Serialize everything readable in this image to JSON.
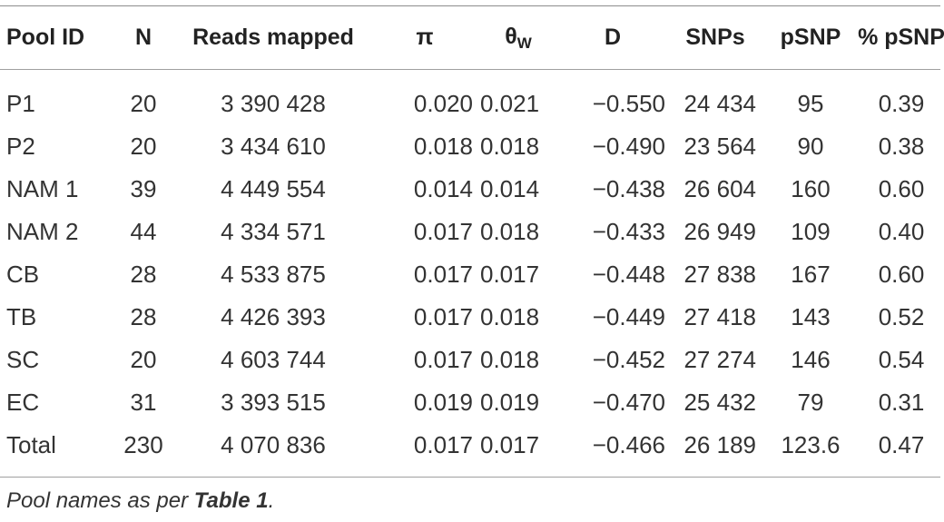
{
  "table": {
    "headers": {
      "pool_id": "Pool ID",
      "n": "N",
      "reads": "Reads mapped",
      "pi": "π",
      "theta": "θ",
      "theta_sub": "W",
      "d": "D",
      "snps": "SNPs",
      "psnp": "pSNP",
      "pct_psnp": "% pSNP"
    },
    "rows": [
      {
        "pool_id": "P1",
        "n": "20",
        "reads": "3 390 428",
        "pi": "0.020",
        "theta": "0.021",
        "d": "−0.550",
        "snps": "24 434",
        "psnp": "95",
        "pct_psnp": "0.39"
      },
      {
        "pool_id": "P2",
        "n": "20",
        "reads": "3 434 610",
        "pi": "0.018",
        "theta": "0.018",
        "d": "−0.490",
        "snps": "23 564",
        "psnp": "90",
        "pct_psnp": "0.38"
      },
      {
        "pool_id": "NAM 1",
        "n": "39",
        "reads": "4 449 554",
        "pi": "0.014",
        "theta": "0.014",
        "d": "−0.438",
        "snps": "26 604",
        "psnp": "160",
        "pct_psnp": "0.60"
      },
      {
        "pool_id": "NAM 2",
        "n": "44",
        "reads": "4 334 571",
        "pi": "0.017",
        "theta": "0.018",
        "d": "−0.433",
        "snps": "26 949",
        "psnp": "109",
        "pct_psnp": "0.40"
      },
      {
        "pool_id": "CB",
        "n": "28",
        "reads": "4 533 875",
        "pi": "0.017",
        "theta": "0.017",
        "d": "−0.448",
        "snps": "27 838",
        "psnp": "167",
        "pct_psnp": "0.60"
      },
      {
        "pool_id": "TB",
        "n": "28",
        "reads": "4 426 393",
        "pi": "0.017",
        "theta": "0.018",
        "d": "−0.449",
        "snps": "27 418",
        "psnp": "143",
        "pct_psnp": "0.52"
      },
      {
        "pool_id": "SC",
        "n": "20",
        "reads": "4 603 744",
        "pi": "0.017",
        "theta": "0.018",
        "d": "−0.452",
        "snps": "27 274",
        "psnp": "146",
        "pct_psnp": "0.54"
      },
      {
        "pool_id": "EC",
        "n": "31",
        "reads": "3 393 515",
        "pi": "0.019",
        "theta": "0.019",
        "d": "−0.470",
        "snps": "25 432",
        "psnp": "79",
        "pct_psnp": "0.31"
      },
      {
        "pool_id": "Total",
        "n": "230",
        "reads": "4 070 836",
        "pi": "0.017",
        "theta": "0.017",
        "d": "−0.466",
        "snps": "26 189",
        "psnp": "123.6",
        "pct_psnp": "0.47"
      }
    ]
  },
  "footnote": {
    "prefix": "Pool names as per ",
    "ref": "Table 1",
    "suffix": "."
  }
}
